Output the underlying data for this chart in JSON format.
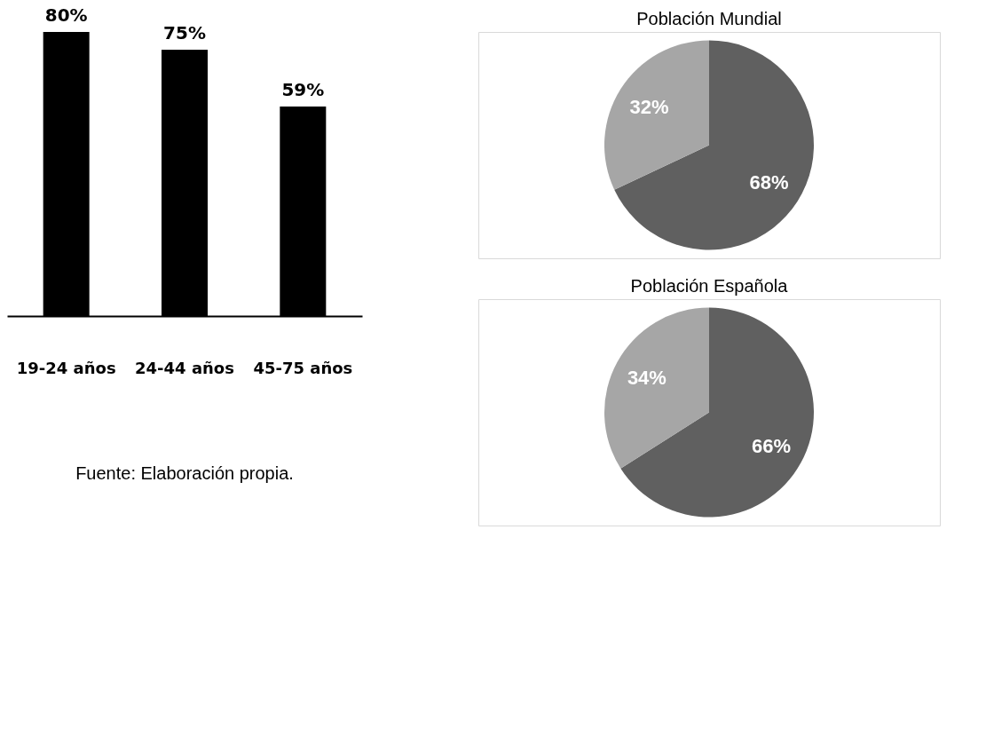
{
  "chart_data": [
    {
      "type": "bar",
      "categories": [
        "19-24 años",
        "24-44 años",
        "45-75 años"
      ],
      "values": [
        80,
        75,
        59
      ],
      "value_labels": [
        "80%",
        "75%",
        "59%"
      ],
      "color": "#000000",
      "tick_labels": "x",
      "grid": false,
      "annotations": [
        "Fuente: Elaboración propia."
      ]
    },
    {
      "type": "pie",
      "title": "Población Mundial",
      "categories": [
        null,
        null
      ],
      "values": [
        68,
        32
      ],
      "colors": [
        "#606060",
        "#a6a6a6"
      ],
      "value_labels": [
        "68%",
        "32%"
      ],
      "legend": false
    },
    {
      "type": "pie",
      "title": "Población Española",
      "categories": [
        null,
        null
      ],
      "values": [
        66,
        34
      ],
      "colors": [
        "#606060",
        "#a6a6a6"
      ],
      "value_labels": [
        "66%",
        "34%"
      ],
      "legend": false
    }
  ]
}
